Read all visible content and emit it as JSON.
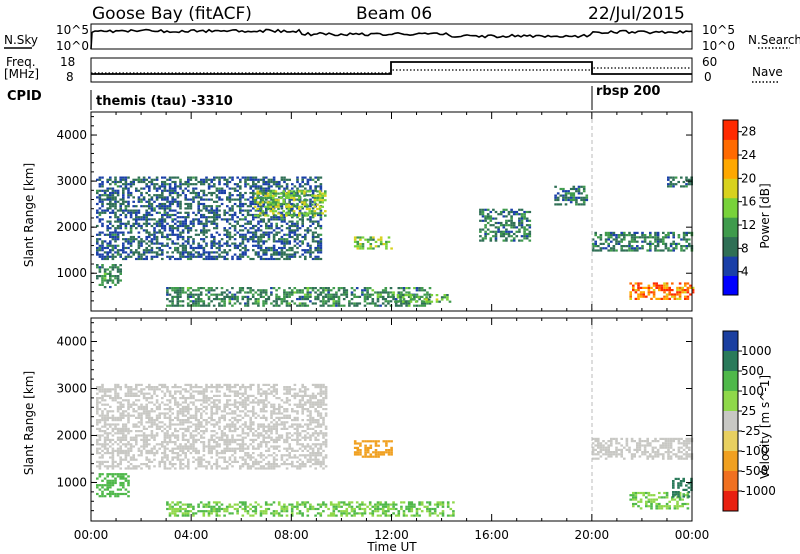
{
  "header": {
    "title": "Goose Bay (fitACF)",
    "beam": "Beam 06",
    "date": "22/Jul/2015"
  },
  "noise_panel": {
    "left_label": "N.Sky",
    "left_tick_top": "10^5",
    "left_tick_bottom": "10^0",
    "right_tick_top": "10^5",
    "right_tick_bottom": "10^0",
    "right_label": "N.Search"
  },
  "freq_panel": {
    "label_line1": "Freq.",
    "label_line2": "[MHz]",
    "left_tick_top": "18",
    "left_tick_bottom": "8",
    "right_tick_top": "60",
    "right_tick_bottom": "0",
    "right_label": "Nave"
  },
  "cpid_panel": {
    "label": "CPID",
    "segments": [
      {
        "text": "themis (tau) -3310",
        "start_hour": 0,
        "end_hour": 20
      },
      {
        "text": "rbsp 200",
        "start_hour": 20,
        "end_hour": 24
      }
    ]
  },
  "chart_data": [
    {
      "type": "heatmap",
      "parameter": "Power",
      "ylabel": "Slant Range [km]",
      "xlabel": "Time UT",
      "x_ticks": [
        "00:00",
        "04:00",
        "08:00",
        "12:00",
        "16:00",
        "20:00",
        "00:00"
      ],
      "xlim_hours": [
        0,
        24
      ],
      "y_ticks": [
        "1000",
        "2000",
        "3000",
        "4000"
      ],
      "ylim_km": [
        180,
        4500
      ],
      "colorbar": {
        "label": "Power [dB]",
        "ticks": [
          "4",
          "8",
          "12",
          "16",
          "20",
          "24",
          "28"
        ],
        "range": [
          0,
          30
        ],
        "colors": [
          "#0000ff",
          "#1a3fa8",
          "#2f6f55",
          "#3f9b4c",
          "#78d23a",
          "#d8d21e",
          "#ffa800",
          "#ff6a00",
          "#ff2a00"
        ]
      },
      "regions": [
        {
          "t0": 0.2,
          "t1": 9.2,
          "r0": 1300,
          "r1": 3100,
          "value": 7
        },
        {
          "t0": 6.5,
          "t1": 9.4,
          "r0": 2250,
          "r1": 2800,
          "value": 15
        },
        {
          "t0": 10.5,
          "t1": 12.0,
          "r0": 1550,
          "r1": 1800,
          "value": 14
        },
        {
          "t0": 0.2,
          "t1": 1.2,
          "r0": 700,
          "r1": 1200,
          "value": 10
        },
        {
          "t0": 3.0,
          "t1": 13.5,
          "r0": 300,
          "r1": 700,
          "value": 10
        },
        {
          "t0": 12.0,
          "t1": 14.3,
          "r0": 400,
          "r1": 550,
          "value": 13
        },
        {
          "t0": 15.5,
          "t1": 17.5,
          "r0": 1700,
          "r1": 2400,
          "value": 9
        },
        {
          "t0": 18.5,
          "t1": 19.8,
          "r0": 2500,
          "r1": 2900,
          "value": 8
        },
        {
          "t0": 20.0,
          "t1": 24.0,
          "r0": 1500,
          "r1": 1900,
          "value": 9
        },
        {
          "t0": 21.5,
          "t1": 24.0,
          "r0": 450,
          "r1": 800,
          "value": 25
        },
        {
          "t0": 23.0,
          "t1": 24.0,
          "r0": 2900,
          "r1": 3100,
          "value": 8
        }
      ]
    },
    {
      "type": "heatmap",
      "parameter": "Velocity",
      "ylabel": "Slant Range [km]",
      "xlabel": "Time UT",
      "x_ticks": [
        "00:00",
        "04:00",
        "08:00",
        "12:00",
        "16:00",
        "20:00",
        "00:00"
      ],
      "xlim_hours": [
        0,
        24
      ],
      "y_ticks": [
        "1000",
        "2000",
        "3000",
        "4000"
      ],
      "ylim_km": [
        180,
        4500
      ],
      "colorbar": {
        "label": "Velocity [m s^-1]",
        "ticks": [
          "1000",
          "500",
          "100",
          "25",
          "-25",
          "-100",
          "-500",
          "-1000"
        ],
        "colors": [
          "#1b3fa0",
          "#2a7a5a",
          "#4fb84a",
          "#8fd84a",
          "#c8c8c4",
          "#e8d060",
          "#f0a020",
          "#f07020",
          "#e82010"
        ]
      },
      "regions": [
        {
          "t0": 0.2,
          "t1": 9.4,
          "r0": 1300,
          "r1": 3100,
          "value": 0
        },
        {
          "t0": 10.5,
          "t1": 12.0,
          "r0": 1550,
          "r1": 1900,
          "value": -300
        },
        {
          "t0": 0.2,
          "t1": 1.5,
          "r0": 700,
          "r1": 1200,
          "value": 150
        },
        {
          "t0": 3.0,
          "t1": 14.5,
          "r0": 300,
          "r1": 600,
          "value": 100
        },
        {
          "t0": 20.0,
          "t1": 24.0,
          "r0": 1500,
          "r1": 1950,
          "value": 0
        },
        {
          "t0": 21.5,
          "t1": 23.8,
          "r0": 450,
          "r1": 800,
          "value": 100
        },
        {
          "t0": 23.2,
          "t1": 24.0,
          "r0": 700,
          "r1": 1100,
          "value": 600
        }
      ]
    }
  ]
}
